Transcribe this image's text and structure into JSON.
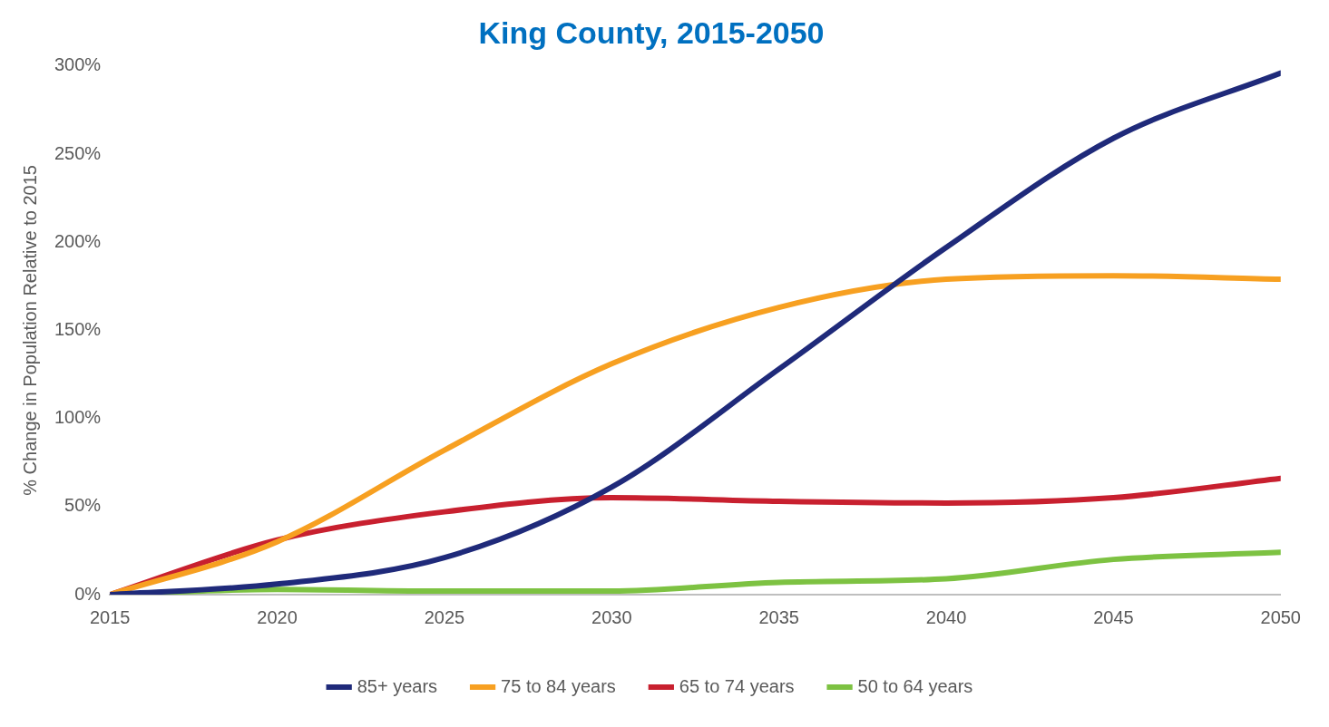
{
  "chart_data": {
    "type": "line",
    "title": "King County, 2015-2050",
    "ylabel": "% Change in Population Relative to 2015",
    "x": [
      2015,
      2020,
      2025,
      2030,
      2035,
      2040,
      2045,
      2050
    ],
    "series": [
      {
        "name": "85+ years",
        "color": "#1f2a7a",
        "values": [
          0,
          6,
          21,
          61,
          128,
          197,
          259,
          296
        ]
      },
      {
        "name": "75 to 84 years",
        "color": "#f7a021",
        "values": [
          0,
          30,
          82,
          131,
          163,
          179,
          181,
          179
        ]
      },
      {
        "name": "65 to 74 years",
        "color": "#c8202f",
        "values": [
          0,
          31,
          47,
          55,
          53,
          52,
          55,
          66
        ]
      },
      {
        "name": "50 to 64 years",
        "color": "#7dc242",
        "values": [
          0,
          3,
          2,
          2,
          7,
          9,
          20,
          24
        ]
      }
    ],
    "xlim": [
      2015,
      2050
    ],
    "xticks": [
      2015,
      2020,
      2025,
      2030,
      2035,
      2040,
      2045,
      2050
    ],
    "ylim": [
      0,
      300
    ],
    "yticks": [
      {
        "value": 0,
        "label": "0%"
      },
      {
        "value": 50,
        "label": "50%"
      },
      {
        "value": 100,
        "label": "100%"
      },
      {
        "value": 150,
        "label": "150%"
      },
      {
        "value": 200,
        "label": "200%"
      },
      {
        "value": 250,
        "label": "250%"
      },
      {
        "value": 300,
        "label": "300%"
      }
    ],
    "grid": false,
    "legend": "bottom",
    "marker": "none",
    "line_style": "solid"
  }
}
